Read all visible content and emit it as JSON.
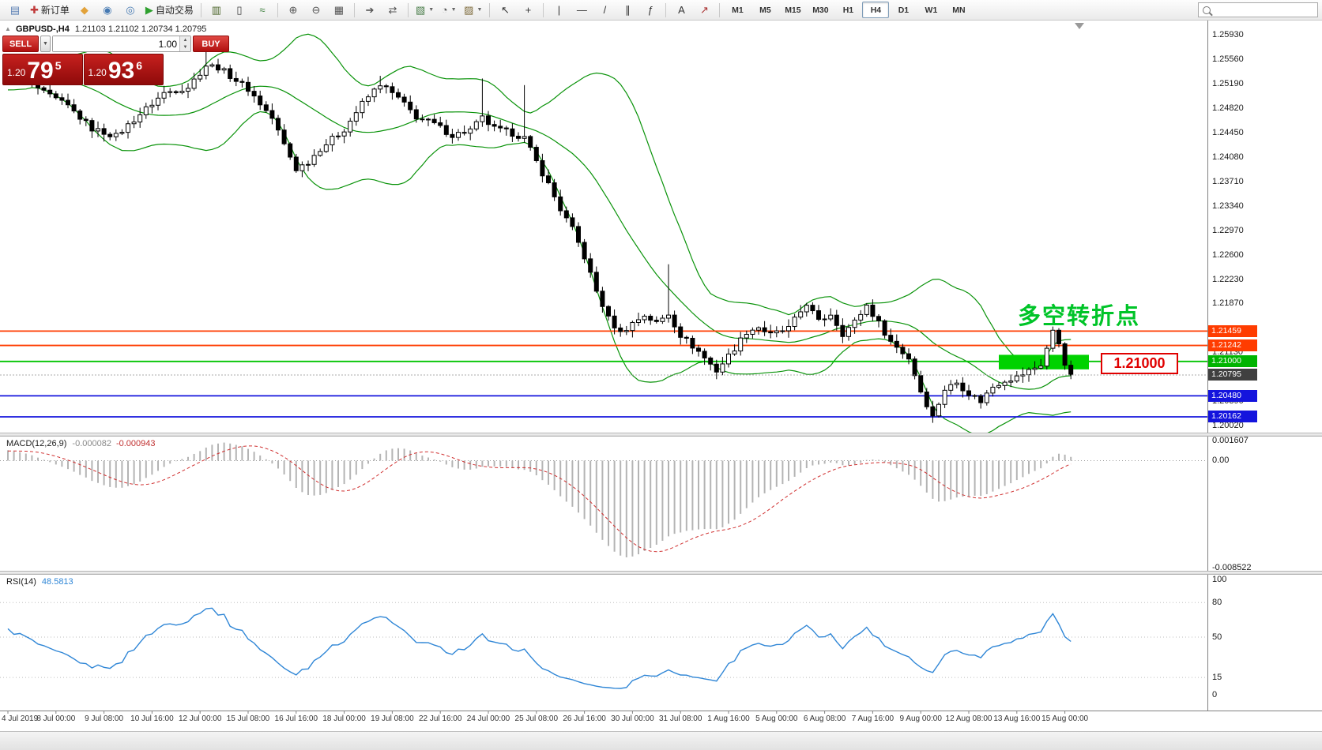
{
  "toolbar": {
    "groups": [
      {
        "items": [
          {
            "name": "charts-icon",
            "glyph": "▤",
            "color": "#5a7fb4"
          },
          {
            "name": "new-order-button",
            "glyph": "✚",
            "color": "#c03a3a",
            "label": "新订单"
          },
          {
            "name": "favorites-icon",
            "glyph": "◆",
            "color": "#e2a23a"
          },
          {
            "name": "community-icon",
            "glyph": "◉",
            "color": "#4579b2"
          },
          {
            "name": "webinar-icon",
            "glyph": "◎",
            "color": "#4579b2"
          },
          {
            "name": "autotrading-button",
            "glyph": "▶",
            "color": "#2ea02e",
            "label": "自动交易"
          }
        ]
      },
      {
        "items": [
          {
            "name": "bar-chart-button",
            "glyph": "▥",
            "color": "#50682f"
          },
          {
            "name": "candlestick-button",
            "glyph": "▯",
            "color": "#3c3c3c"
          },
          {
            "name": "line-chart-button",
            "glyph": "≈",
            "color": "#3c7f3c"
          }
        ]
      },
      {
        "items": [
          {
            "name": "zoom-in-button",
            "glyph": "⊕",
            "color": "#555555"
          },
          {
            "name": "zoom-out-button",
            "glyph": "⊖",
            "color": "#555555"
          },
          {
            "name": "tile-windows-button",
            "glyph": "▦",
            "color": "#555555"
          }
        ]
      },
      {
        "items": [
          {
            "name": "auto-scroll-button",
            "glyph": "➔",
            "color": "#555555"
          },
          {
            "name": "chart-shift-button",
            "glyph": "⇄",
            "color": "#555555"
          }
        ]
      },
      {
        "items": [
          {
            "name": "new-chart-button",
            "glyph": "▧",
            "caret": true,
            "color": "#4a7d4a"
          },
          {
            "name": "periods-button",
            "glyph": "◔",
            "caret": true,
            "color": "#555555"
          },
          {
            "name": "templates-button",
            "glyph": "▨",
            "caret": true,
            "color": "#7d6a3a"
          }
        ]
      },
      {
        "items": [
          {
            "name": "cursor-button",
            "glyph": "↖",
            "color": "#333333"
          },
          {
            "name": "crosshair-button",
            "glyph": "+",
            "color": "#333333"
          }
        ]
      },
      {
        "items": [
          {
            "name": "vertical-line-button",
            "glyph": "|",
            "color": "#333333"
          },
          {
            "name": "horizontal-line-button",
            "glyph": "—",
            "color": "#333333"
          },
          {
            "name": "trendline-button",
            "glyph": "/",
            "color": "#333333"
          },
          {
            "name": "channel-button",
            "glyph": "∥",
            "color": "#333333"
          },
          {
            "name": "fibonacci-button",
            "glyph": "ƒ",
            "color": "#333333"
          }
        ]
      },
      {
        "items": [
          {
            "name": "text-button",
            "glyph": "A",
            "color": "#333333"
          },
          {
            "name": "arrows-button",
            "glyph": "↗",
            "color": "#aa3333"
          }
        ]
      }
    ],
    "timeframes": [
      "M1",
      "M5",
      "M15",
      "M30",
      "H1",
      "H4",
      "D1",
      "W1",
      "MN"
    ],
    "active_timeframe": "H4",
    "search": {
      "placeholder": ""
    }
  },
  "chart": {
    "title": "GBPUSD-,H4",
    "ohlc": "1.21103 1.21102 1.20734 1.20795"
  },
  "one_click": {
    "sell_label": "SELL",
    "buy_label": "BUY",
    "volume": "1.00",
    "sell_price": {
      "prefix": "1.20",
      "big": "79",
      "sup": "5"
    },
    "buy_price": {
      "prefix": "1.20",
      "big": "93",
      "sup": "6"
    }
  },
  "overlays": {
    "turning_point_text": "多空转折点",
    "turning_point_color": "#00c428",
    "price_box_text": "1.21000",
    "price_box_color": "#e00000"
  },
  "indicators": {
    "macd": {
      "name": "MACD(12,26,9)",
      "value_main": "-0.000082",
      "value_signal": "-0.000943"
    },
    "rsi": {
      "name": "RSI(14)",
      "value": "48.5813"
    }
  },
  "chart_data": {
    "type": "candlestick",
    "symbol": "GBPUSD",
    "timeframe": "H4",
    "bars": 178,
    "price_axis": {
      "ticks": [
        1.2593,
        1.2556,
        1.2519,
        1.2482,
        1.2445,
        1.2408,
        1.2371,
        1.2334,
        1.2297,
        1.226,
        1.2223,
        1.2187,
        1.2113,
        1.2039,
        1.2002
      ],
      "tags": [
        {
          "value": 1.21459,
          "color": "#ff3c00"
        },
        {
          "value": 1.21242,
          "color": "#ff3c00"
        },
        {
          "value": 1.21,
          "color": "#00b400"
        },
        {
          "value": 1.20795,
          "color": "#404040"
        },
        {
          "value": 1.2048,
          "color": "#1414dd"
        },
        {
          "value": 1.20162,
          "color": "#1414dd"
        }
      ]
    },
    "close_anchors": [
      [
        0,
        1.2541
      ],
      [
        3,
        1.2528
      ],
      [
        6,
        1.2506
      ],
      [
        10,
        1.2486
      ],
      [
        14,
        1.2452
      ],
      [
        18,
        1.2441
      ],
      [
        22,
        1.2474
      ],
      [
        26,
        1.2506
      ],
      [
        30,
        1.2515
      ],
      [
        33,
        1.2548
      ],
      [
        35,
        1.2545
      ],
      [
        37,
        1.2532
      ],
      [
        40,
        1.2512
      ],
      [
        44,
        1.2468
      ],
      [
        46,
        1.2428
      ],
      [
        48,
        1.2391
      ],
      [
        50,
        1.2402
      ],
      [
        52,
        1.2422
      ],
      [
        56,
        1.2451
      ],
      [
        59,
        1.249
      ],
      [
        62,
        1.252
      ],
      [
        65,
        1.2498
      ],
      [
        68,
        1.247
      ],
      [
        71,
        1.2459
      ],
      [
        74,
        1.2442
      ],
      [
        77,
        1.245
      ],
      [
        79,
        1.2468
      ],
      [
        81,
        1.2452
      ],
      [
        84,
        1.2445
      ],
      [
        86,
        1.2438
      ],
      [
        88,
        1.2402
      ],
      [
        90,
        1.2368
      ],
      [
        92,
        1.233
      ],
      [
        94,
        1.23
      ],
      [
        96,
        1.2258
      ],
      [
        98,
        1.2206
      ],
      [
        100,
        1.2165
      ],
      [
        102,
        1.2143
      ],
      [
        104,
        1.2158
      ],
      [
        106,
        1.217
      ],
      [
        108,
        1.2158
      ],
      [
        110,
        1.2172
      ],
      [
        112,
        1.214
      ],
      [
        115,
        1.2115
      ],
      [
        118,
        1.2086
      ],
      [
        121,
        1.212
      ],
      [
        123,
        1.2145
      ],
      [
        125,
        1.2152
      ],
      [
        127,
        1.214
      ],
      [
        130,
        1.215
      ],
      [
        133,
        1.2188
      ],
      [
        135,
        1.216
      ],
      [
        137,
        1.2172
      ],
      [
        139,
        1.2142
      ],
      [
        141,
        1.216
      ],
      [
        143,
        1.2185
      ],
      [
        145,
        1.2158
      ],
      [
        147,
        1.213
      ],
      [
        150,
        1.2105
      ],
      [
        152,
        1.2055
      ],
      [
        154,
        1.2016
      ],
      [
        156,
        1.2058
      ],
      [
        158,
        1.2068
      ],
      [
        160,
        1.2052
      ],
      [
        162,
        1.204
      ],
      [
        164,
        1.2062
      ],
      [
        166,
        1.2072
      ],
      [
        168,
        1.2076
      ],
      [
        170,
        1.2086
      ],
      [
        172,
        1.2095
      ],
      [
        174,
        1.2145
      ],
      [
        175,
        1.2128
      ],
      [
        176,
        1.2098
      ],
      [
        177,
        1.20795
      ]
    ],
    "wick_overrides": {
      "33": {
        "h": 1.2572
      },
      "62": {
        "h": 1.2532
      },
      "79": {
        "h": 1.2528
      },
      "86": {
        "h": 1.2518
      },
      "110": {
        "h": 1.2247
      },
      "118": {
        "l": 1.2074
      },
      "154": {
        "l": 1.2011
      },
      "174": {
        "h": 1.2152
      }
    },
    "bollinger": {
      "period": 20,
      "deviation": 2,
      "color": "#0a930a"
    },
    "h_lines": [
      {
        "price": 1.21459,
        "color": "#ff3c00"
      },
      {
        "price": 1.21242,
        "color": "#ff3c00"
      },
      {
        "price": 1.21,
        "color": "#00c400"
      },
      {
        "price": 1.2048,
        "color": "#1414dd"
      },
      {
        "price": 1.20162,
        "color": "#1414dd"
      }
    ],
    "current_price": 1.20795,
    "objects": {
      "highlight_rect": {
        "from_bar": 165,
        "to_bar": 180,
        "price_top": 1.211,
        "price_bottom": 1.2088,
        "color": "#00d200"
      }
    },
    "macd_panel": {
      "scale_max": 0.001607,
      "scale_min": -0.008522,
      "axis": [
        {
          "text": "0.001607",
          "value": 0.001607
        },
        {
          "text": "0.00",
          "value": 0
        },
        {
          "text": "-0.008522",
          "value": -0.008522
        }
      ],
      "histogram_color": "#b4b4b4",
      "signal_color": "#d03030"
    },
    "rsi_panel": {
      "levels": [
        80,
        50,
        15
      ],
      "axis": [
        100,
        80,
        50,
        15,
        0
      ],
      "line_color": "#2f86d6"
    },
    "x_axis": {
      "labels": [
        "4 Jul 2019",
        "8 Jul 00:00",
        "9 Jul 08:00",
        "10 Jul 16:00",
        "12 Jul 00:00",
        "15 Jul 08:00",
        "16 Jul 16:00",
        "18 Jul 00:00",
        "19 Jul 08:00",
        "22 Jul 16:00",
        "24 Jul 00:00",
        "25 Jul 08:00",
        "26 Jul 16:00",
        "30 Jul 00:00",
        "31 Jul 08:00",
        "1 Aug 16:00",
        "5 Aug 00:00",
        "6 Aug 08:00",
        "7 Aug 16:00",
        "9 Aug 00:00",
        "12 Aug 08:00",
        "13 Aug 16:00",
        "15 Aug 00:00"
      ],
      "bars_per_label": 8
    }
  }
}
